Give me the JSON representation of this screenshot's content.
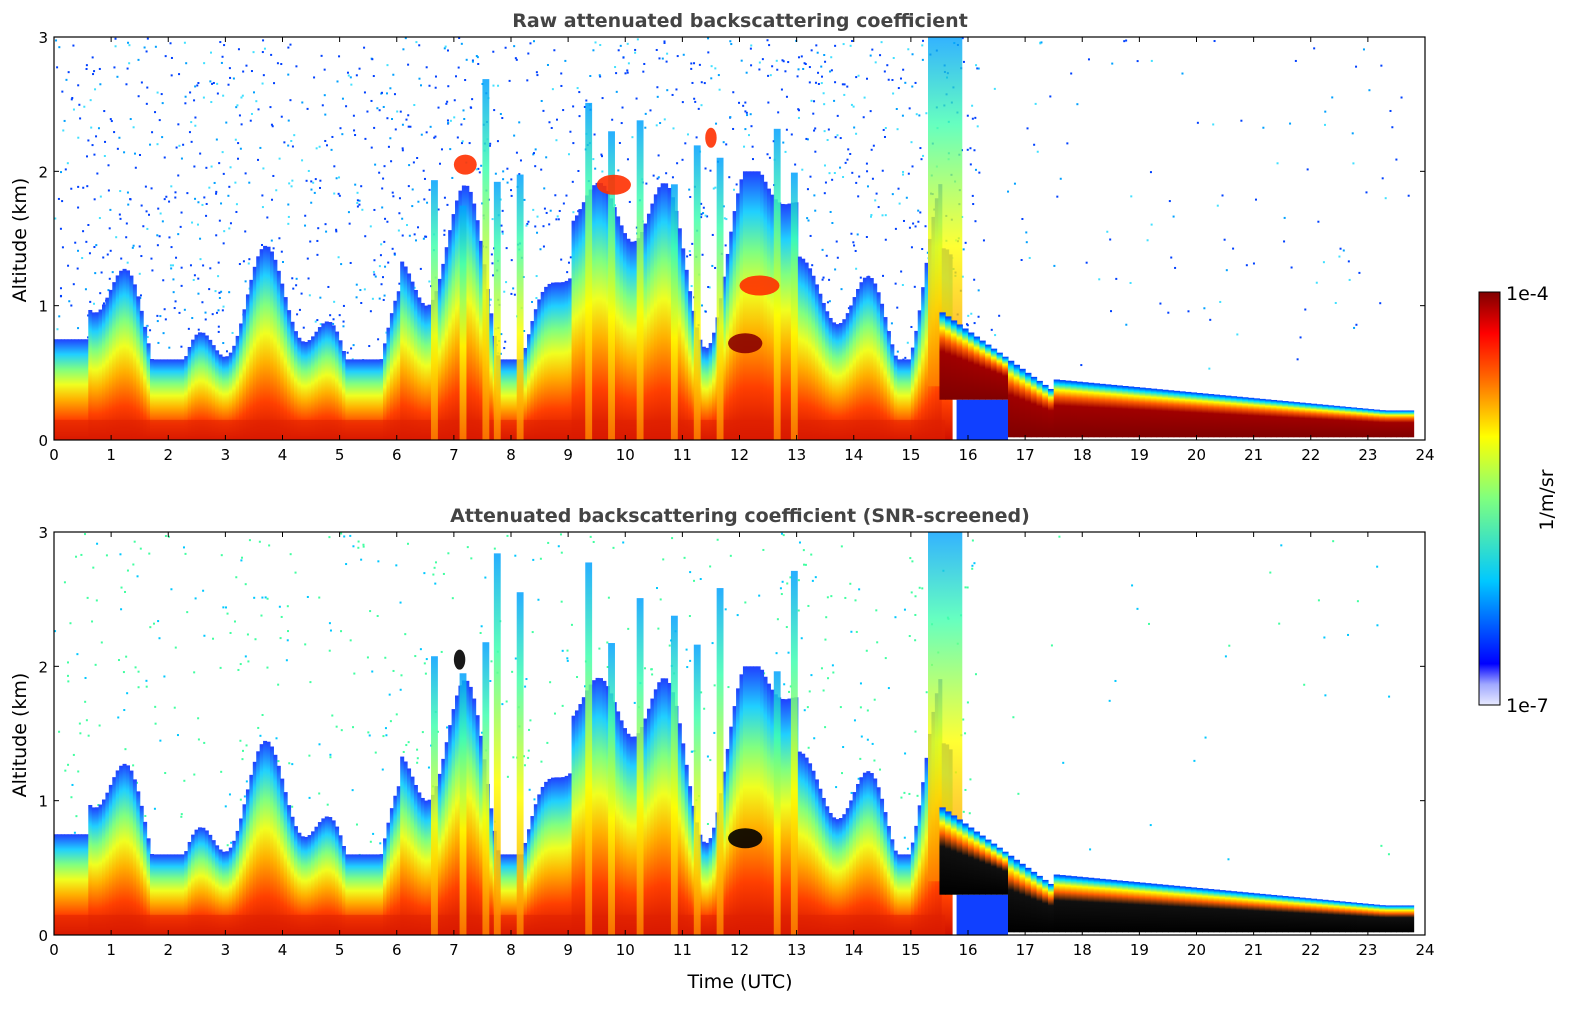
{
  "chart_data": [
    {
      "type": "heatmap",
      "title": "Raw attenuated backscattering coefficient",
      "xlabel": "",
      "ylabel": "Altitude (km)",
      "xlim": [
        0,
        24
      ],
      "ylim": [
        0,
        3
      ],
      "x_ticks": [
        "0",
        "1",
        "2",
        "3",
        "4",
        "5",
        "6",
        "7",
        "8",
        "9",
        "10",
        "11",
        "12",
        "13",
        "14",
        "15",
        "16",
        "17",
        "18",
        "19",
        "20",
        "21",
        "22",
        "23",
        "24"
      ],
      "y_ticks": [
        "0",
        "1",
        "2",
        "3"
      ],
      "data_end_hour": 23.75,
      "features": [
        {
          "name": "boundary-layer aerosol",
          "t_start": 0,
          "t_end": 15.6,
          "alt_top_km": 0.8,
          "level": "high"
        },
        {
          "name": "fog / low cloud layer",
          "t_start": 15.5,
          "t_end": 23.75,
          "alt_top_km": 0.25,
          "level": "saturated"
        },
        {
          "name": "elevated aerosol plume",
          "t_start": 7.0,
          "t_end": 7.4,
          "alt_km": 2.05,
          "level": "high"
        },
        {
          "name": "elevated aerosol plume",
          "t_start": 9.5,
          "t_end": 10.1,
          "alt_km": 1.9,
          "level": "high"
        },
        {
          "name": "elevated aerosol plume",
          "t_start": 11.4,
          "t_end": 11.6,
          "alt_km": 2.25,
          "level": "high"
        },
        {
          "name": "elevated aerosol plume",
          "t_start": 11.8,
          "t_end": 12.4,
          "alt_km": 0.72,
          "level": "saturated"
        },
        {
          "name": "elevated aerosol plume",
          "t_start": 12.0,
          "t_end": 12.7,
          "alt_km": 1.15,
          "level": "high"
        }
      ]
    },
    {
      "type": "heatmap",
      "title": "Attenuated backscattering coefficient (SNR-screened)",
      "xlabel": "Time (UTC)",
      "ylabel": "Altitude (km)",
      "xlim": [
        0,
        24
      ],
      "ylim": [
        0,
        3
      ],
      "x_ticks": [
        "0",
        "1",
        "2",
        "3",
        "4",
        "5",
        "6",
        "7",
        "8",
        "9",
        "10",
        "11",
        "12",
        "13",
        "14",
        "15",
        "16",
        "17",
        "18",
        "19",
        "20",
        "21",
        "22",
        "23",
        "24"
      ],
      "y_ticks": [
        "0",
        "1",
        "2",
        "3"
      ],
      "data_end_hour": 23.75,
      "features": [
        {
          "name": "boundary-layer aerosol",
          "t_start": 0,
          "t_end": 15.6,
          "alt_top_km": 0.8,
          "level": "high"
        },
        {
          "name": "fog / low cloud layer (masked)",
          "t_start": 15.5,
          "t_end": 23.75,
          "alt_top_km": 0.25,
          "level": "masked"
        },
        {
          "name": "masked plume",
          "t_start": 11.8,
          "t_end": 12.4,
          "alt_km": 0.72,
          "level": "masked"
        },
        {
          "name": "masked plume",
          "t_start": 7.0,
          "t_end": 7.2,
          "alt_km": 2.05,
          "level": "masked"
        }
      ]
    }
  ],
  "colorbar": {
    "label": "1/m/sr",
    "max_label": "1e-4",
    "min_label": "1e-7",
    "stops": [
      "#ffffff",
      "#0000ff",
      "#00ffff",
      "#ffff00",
      "#ff0000",
      "#800000"
    ]
  }
}
